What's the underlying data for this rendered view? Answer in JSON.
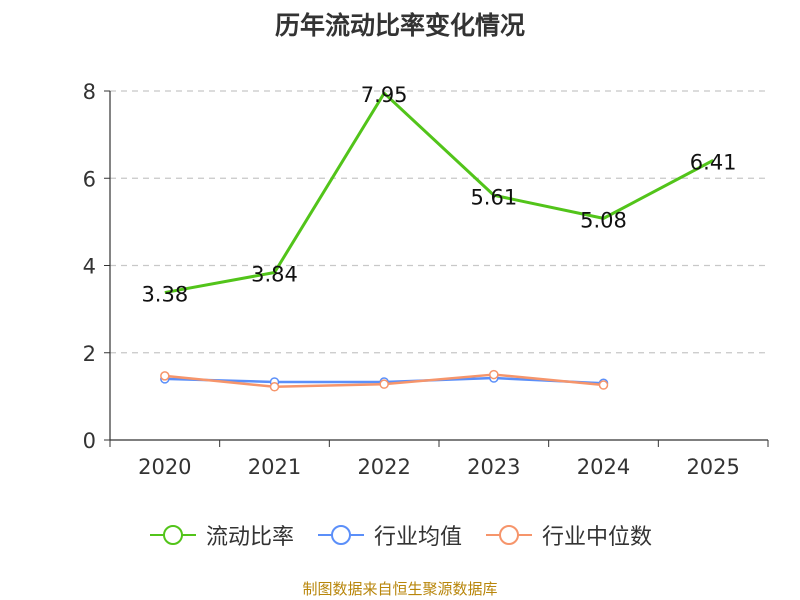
{
  "chart_data": {
    "type": "line",
    "title": "历年流动比率变化情况",
    "categories": [
      "2020",
      "2021",
      "2022",
      "2023",
      "2024",
      "2025"
    ],
    "ylim": [
      0,
      8
    ],
    "yticks": [
      0,
      2,
      4,
      6,
      8
    ],
    "grid": true,
    "legend_position": "bottom",
    "series": [
      {
        "name": "流动比率",
        "color": "#52c41a",
        "values": [
          3.38,
          3.84,
          7.95,
          5.61,
          5.08,
          6.41
        ],
        "show_labels": true,
        "show_markers": false
      },
      {
        "name": "行业均值",
        "color": "#5b8ff9",
        "values": [
          1.4,
          1.33,
          1.33,
          1.42,
          1.3,
          null
        ],
        "show_labels": false,
        "show_markers": true
      },
      {
        "name": "行业中位数",
        "color": "#f6956b",
        "values": [
          1.47,
          1.22,
          1.28,
          1.5,
          1.26,
          null
        ],
        "show_labels": false,
        "show_markers": true
      }
    ]
  },
  "source_text": "制图数据来自恒生聚源数据库"
}
